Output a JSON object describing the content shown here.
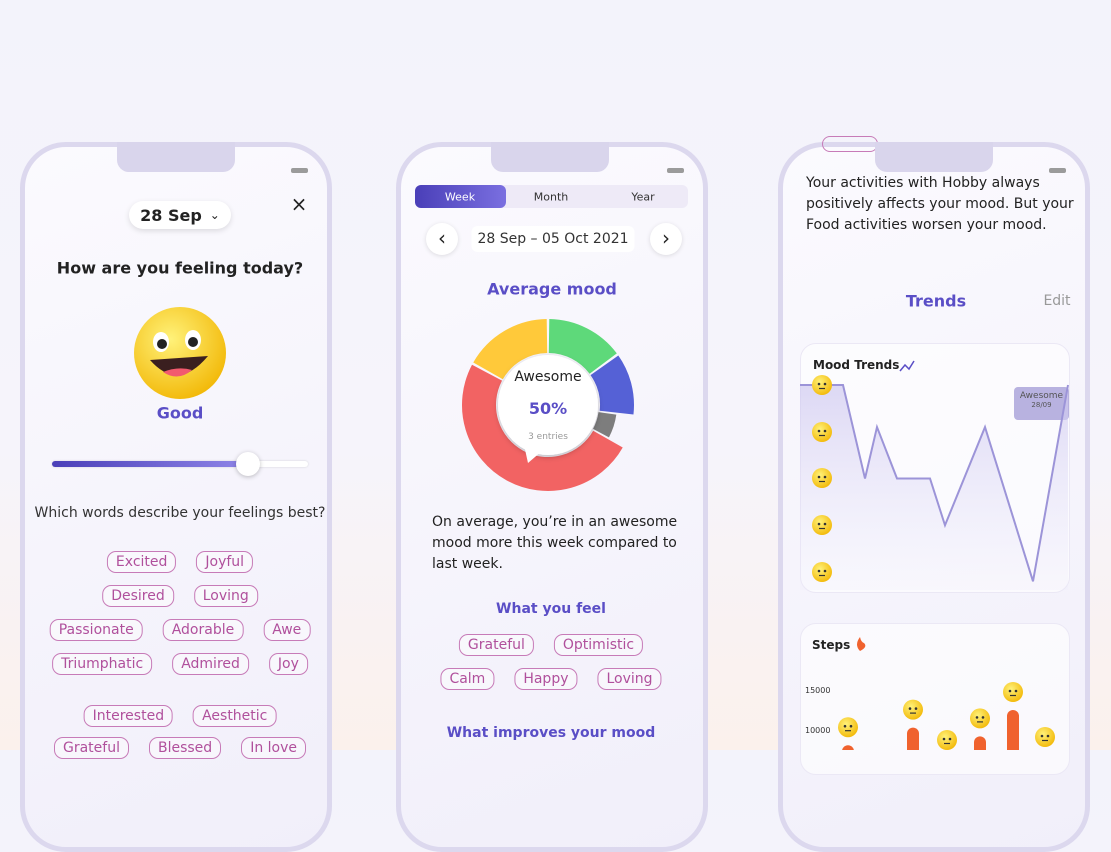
{
  "phone1": {
    "date": "28 Sep",
    "question": "How are you feeling today?",
    "mood": "Good",
    "words_prompt": "Which words describe your feelings best?",
    "word_rows": [
      [
        "Excited",
        "Joyful"
      ],
      [
        "Desired",
        "Loving"
      ],
      [
        "Passionate",
        "Adorable",
        "Awe"
      ],
      [
        "Triumphatic",
        "Admired",
        "Joy"
      ],
      [
        "Interested",
        "Aesthetic"
      ],
      [
        "Grateful",
        "Blessed",
        "In love"
      ]
    ]
  },
  "phone2": {
    "tabs": [
      "Week",
      "Month",
      "Year"
    ],
    "range": "28 Sep – 05 Oct 2021",
    "heading": "Average mood",
    "center_label": "Awesome",
    "center_value": "50%",
    "entries": "3 entries",
    "donut": {
      "type": "donut",
      "segments": [
        {
          "color": "#5ed97a",
          "value": 15
        },
        {
          "color": "#5561d6",
          "value": 12
        },
        {
          "color": "#7d7d7d",
          "value": 6
        },
        {
          "color": "#f26363",
          "value": 50
        },
        {
          "color": "#ffc93a",
          "value": 17
        }
      ]
    },
    "summary": "On average, you’re in an awesome mood more this week compared to last week.",
    "feel_heading": "What you feel",
    "feel_rows": [
      [
        "Grateful",
        "Optimistic"
      ],
      [
        "Calm",
        "Happy",
        "Loving"
      ]
    ],
    "improve_heading": "What improves your mood"
  },
  "phone3": {
    "insight": "Your activities with Hobby always positively affects your mood. But your Food activities worsen your mood.",
    "trends_heading": "Trends",
    "edit": "Edit",
    "mood_trends": {
      "type": "line",
      "title": "Mood Trends",
      "ylim": [
        1,
        5
      ],
      "color": "#9c94d8",
      "values": [
        5,
        5,
        3,
        4.1,
        3,
        3,
        2,
        4.1,
        0.8,
        5
      ],
      "tooltip": {
        "label": "Awesome",
        "date": "28/09"
      }
    },
    "steps": {
      "type": "bar",
      "title": "Steps",
      "color": "#f0622e",
      "yticks": [
        15000,
        10000
      ],
      "values": [
        8100,
        10300,
        9200,
        12500
      ]
    }
  }
}
